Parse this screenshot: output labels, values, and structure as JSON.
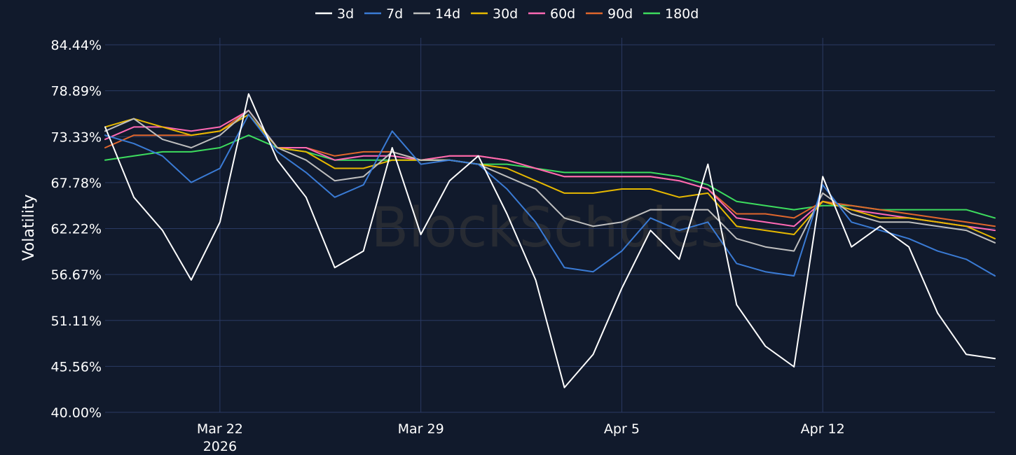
{
  "chart_data": {
    "type": "line",
    "title": "",
    "watermark": "BlockScholes",
    "xlabel": "",
    "ylabel": "Volatility",
    "x_start": "2026-03-18",
    "x_end": "2026-04-18",
    "x_ticks": [
      {
        "date": "2026-03-22",
        "label": "Mar 22",
        "sublabel": "2026"
      },
      {
        "date": "2026-03-29",
        "label": "Mar 29",
        "sublabel": ""
      },
      {
        "date": "2026-04-05",
        "label": "Apr 5",
        "sublabel": ""
      },
      {
        "date": "2026-04-12",
        "label": "Apr 12",
        "sublabel": ""
      }
    ],
    "y_ticks": [
      "40.00%",
      "45.56%",
      "51.11%",
      "56.67%",
      "62.22%",
      "67.78%",
      "73.33%",
      "78.89%",
      "84.44%"
    ],
    "ylim": [
      40.0,
      84.44
    ],
    "grid": true,
    "legend_position": "top-center",
    "series": [
      {
        "name": "3d",
        "color": "#ffffff",
        "x": [
          "2026-03-18",
          "2026-03-19",
          "2026-03-20",
          "2026-03-21",
          "2026-03-22",
          "2026-03-23",
          "2026-03-24",
          "2026-03-25",
          "2026-03-26",
          "2026-03-27",
          "2026-03-28",
          "2026-03-29",
          "2026-03-30",
          "2026-03-31",
          "2026-04-01",
          "2026-04-02",
          "2026-04-03",
          "2026-04-04",
          "2026-04-05",
          "2026-04-06",
          "2026-04-07",
          "2026-04-08",
          "2026-04-09",
          "2026-04-10",
          "2026-04-11",
          "2026-04-12",
          "2026-04-13",
          "2026-04-14",
          "2026-04-15",
          "2026-04-16",
          "2026-04-17",
          "2026-04-18"
        ],
        "values": [
          74.5,
          66.0,
          62.0,
          56.0,
          63.0,
          78.5,
          70.5,
          66.0,
          57.5,
          59.5,
          72.0,
          61.5,
          68.0,
          71.0,
          64.0,
          56.0,
          43.0,
          47.0,
          55.0,
          62.0,
          58.5,
          70.0,
          53.0,
          48.0,
          45.5,
          68.5,
          60.0,
          62.5,
          60.0,
          52.0,
          47.0,
          46.5
        ]
      },
      {
        "name": "7d",
        "color": "#3a7bd5",
        "x": [
          "2026-03-18",
          "2026-03-19",
          "2026-03-20",
          "2026-03-21",
          "2026-03-22",
          "2026-03-23",
          "2026-03-24",
          "2026-03-25",
          "2026-03-26",
          "2026-03-27",
          "2026-03-28",
          "2026-03-29",
          "2026-03-30",
          "2026-03-31",
          "2026-04-01",
          "2026-04-02",
          "2026-04-03",
          "2026-04-04",
          "2026-04-05",
          "2026-04-06",
          "2026-04-07",
          "2026-04-08",
          "2026-04-09",
          "2026-04-10",
          "2026-04-11",
          "2026-04-12",
          "2026-04-13",
          "2026-04-14",
          "2026-04-15",
          "2026-04-16",
          "2026-04-17",
          "2026-04-18"
        ],
        "values": [
          73.5,
          72.5,
          71.0,
          67.8,
          69.5,
          76.0,
          71.5,
          69.0,
          66.0,
          67.5,
          74.0,
          70.0,
          70.5,
          70.0,
          67.0,
          63.0,
          57.5,
          57.0,
          59.5,
          63.5,
          62.0,
          63.0,
          58.0,
          57.0,
          56.5,
          67.5,
          63.0,
          62.0,
          61.0,
          59.5,
          58.5,
          56.5
        ]
      },
      {
        "name": "14d",
        "color": "#bfbfbf",
        "x": [
          "2026-03-18",
          "2026-03-19",
          "2026-03-20",
          "2026-03-21",
          "2026-03-22",
          "2026-03-23",
          "2026-03-24",
          "2026-03-25",
          "2026-03-26",
          "2026-03-27",
          "2026-03-28",
          "2026-03-29",
          "2026-03-30",
          "2026-03-31",
          "2026-04-01",
          "2026-04-02",
          "2026-04-03",
          "2026-04-04",
          "2026-04-05",
          "2026-04-06",
          "2026-04-07",
          "2026-04-08",
          "2026-04-09",
          "2026-04-10",
          "2026-04-11",
          "2026-04-12",
          "2026-04-13",
          "2026-04-14",
          "2026-04-15",
          "2026-04-16",
          "2026-04-17",
          "2026-04-18"
        ],
        "values": [
          74.0,
          75.5,
          73.0,
          72.0,
          73.5,
          76.5,
          72.0,
          70.5,
          68.0,
          68.5,
          71.5,
          70.5,
          70.5,
          70.0,
          68.5,
          67.0,
          63.5,
          62.5,
          63.0,
          64.5,
          64.5,
          64.5,
          61.0,
          60.0,
          59.5,
          66.5,
          64.0,
          63.0,
          63.0,
          62.5,
          62.0,
          60.5
        ]
      },
      {
        "name": "30d",
        "color": "#e6b800",
        "x": [
          "2026-03-18",
          "2026-03-19",
          "2026-03-20",
          "2026-03-21",
          "2026-03-22",
          "2026-03-23",
          "2026-03-24",
          "2026-03-25",
          "2026-03-26",
          "2026-03-27",
          "2026-03-28",
          "2026-03-29",
          "2026-03-30",
          "2026-03-31",
          "2026-04-01",
          "2026-04-02",
          "2026-04-03",
          "2026-04-04",
          "2026-04-05",
          "2026-04-06",
          "2026-04-07",
          "2026-04-08",
          "2026-04-09",
          "2026-04-10",
          "2026-04-11",
          "2026-04-12",
          "2026-04-13",
          "2026-04-14",
          "2026-04-15",
          "2026-04-16",
          "2026-04-17",
          "2026-04-18"
        ],
        "values": [
          74.5,
          75.5,
          74.5,
          73.5,
          74.0,
          76.0,
          72.0,
          71.5,
          69.5,
          69.5,
          70.5,
          70.5,
          70.5,
          70.0,
          69.5,
          68.0,
          66.5,
          66.5,
          67.0,
          67.0,
          66.0,
          66.5,
          62.5,
          62.0,
          61.5,
          65.5,
          64.5,
          63.5,
          63.5,
          63.0,
          62.5,
          61.0
        ]
      },
      {
        "name": "60d",
        "color": "#ff69b4",
        "x": [
          "2026-03-18",
          "2026-03-19",
          "2026-03-20",
          "2026-03-21",
          "2026-03-22",
          "2026-03-23",
          "2026-03-24",
          "2026-03-25",
          "2026-03-26",
          "2026-03-27",
          "2026-03-28",
          "2026-03-29",
          "2026-03-30",
          "2026-03-31",
          "2026-04-01",
          "2026-04-02",
          "2026-04-03",
          "2026-04-04",
          "2026-04-05",
          "2026-04-06",
          "2026-04-07",
          "2026-04-08",
          "2026-04-09",
          "2026-04-10",
          "2026-04-11",
          "2026-04-12",
          "2026-04-13",
          "2026-04-14",
          "2026-04-15",
          "2026-04-16",
          "2026-04-17",
          "2026-04-18"
        ],
        "values": [
          73.0,
          74.5,
          74.5,
          74.0,
          74.5,
          76.5,
          72.0,
          72.0,
          70.5,
          71.0,
          71.0,
          70.5,
          71.0,
          71.0,
          70.5,
          69.5,
          68.5,
          68.5,
          68.5,
          68.5,
          68.0,
          67.0,
          63.5,
          63.0,
          62.5,
          65.5,
          64.5,
          64.0,
          63.5,
          63.0,
          62.5,
          62.0
        ]
      },
      {
        "name": "90d",
        "color": "#e0662c",
        "x": [
          "2026-03-18",
          "2026-03-19",
          "2026-03-20",
          "2026-03-21",
          "2026-03-22",
          "2026-03-23",
          "2026-03-24",
          "2026-03-25",
          "2026-03-26",
          "2026-03-27",
          "2026-03-28",
          "2026-03-29",
          "2026-03-30",
          "2026-03-31",
          "2026-04-01",
          "2026-04-02",
          "2026-04-03",
          "2026-04-04",
          "2026-04-05",
          "2026-04-06",
          "2026-04-07",
          "2026-04-08",
          "2026-04-09",
          "2026-04-10",
          "2026-04-11",
          "2026-04-12",
          "2026-04-13",
          "2026-04-14",
          "2026-04-15",
          "2026-04-16",
          "2026-04-17",
          "2026-04-18"
        ],
        "values": [
          72.0,
          73.5,
          73.5,
          73.5,
          74.0,
          76.5,
          72.0,
          72.0,
          71.0,
          71.5,
          71.5,
          70.5,
          71.0,
          71.0,
          70.5,
          69.5,
          68.5,
          68.5,
          68.5,
          68.5,
          68.0,
          67.0,
          64.0,
          64.0,
          63.5,
          65.5,
          65.0,
          64.5,
          64.0,
          63.5,
          63.0,
          62.5
        ]
      },
      {
        "name": "180d",
        "color": "#3ddc5e",
        "x": [
          "2026-03-18",
          "2026-03-19",
          "2026-03-20",
          "2026-03-21",
          "2026-03-22",
          "2026-03-23",
          "2026-03-24",
          "2026-03-25",
          "2026-03-26",
          "2026-03-27",
          "2026-03-28",
          "2026-03-29",
          "2026-03-30",
          "2026-03-31",
          "2026-04-01",
          "2026-04-02",
          "2026-04-03",
          "2026-04-04",
          "2026-04-05",
          "2026-04-06",
          "2026-04-07",
          "2026-04-08",
          "2026-04-09",
          "2026-04-10",
          "2026-04-11",
          "2026-04-12",
          "2026-04-13",
          "2026-04-14",
          "2026-04-15",
          "2026-04-16",
          "2026-04-17",
          "2026-04-18"
        ],
        "values": [
          70.5,
          71.0,
          71.5,
          71.5,
          72.0,
          73.5,
          72.0,
          71.5,
          70.5,
          70.5,
          70.5,
          70.5,
          70.5,
          70.0,
          70.0,
          69.5,
          69.0,
          69.0,
          69.0,
          69.0,
          68.5,
          67.5,
          65.5,
          65.0,
          64.5,
          65.0,
          65.0,
          64.5,
          64.5,
          64.5,
          64.5,
          63.5
        ]
      }
    ]
  }
}
